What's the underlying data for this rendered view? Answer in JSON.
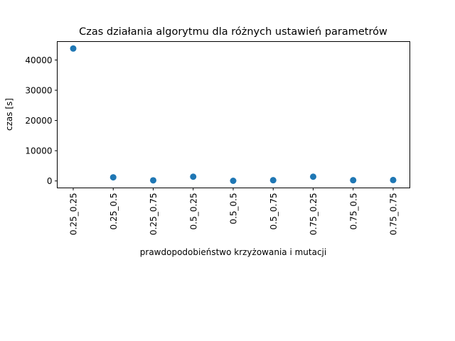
{
  "chart_data": {
    "type": "scatter",
    "title": "Czas działania algorytmu dla różnych ustawień parametrów",
    "xlabel": "prawdopodobieństwo krzyżowania i mutacji",
    "ylabel": "czas [s]",
    "categories": [
      "0.25_0.25",
      "0.25_0.5",
      "0.25_0.75",
      "0.5_0.25",
      "0.5_0.5",
      "0.5_0.75",
      "0.75_0.25",
      "0.75_0.5",
      "0.75_0.75"
    ],
    "values": [
      43800,
      1200,
      200,
      1400,
      50,
      250,
      1400,
      250,
      300
    ],
    "yticks": [
      0,
      10000,
      20000,
      30000,
      40000
    ],
    "ylim": [
      -2300,
      46100
    ],
    "grid": false,
    "marker_color": "#1f77b4"
  }
}
